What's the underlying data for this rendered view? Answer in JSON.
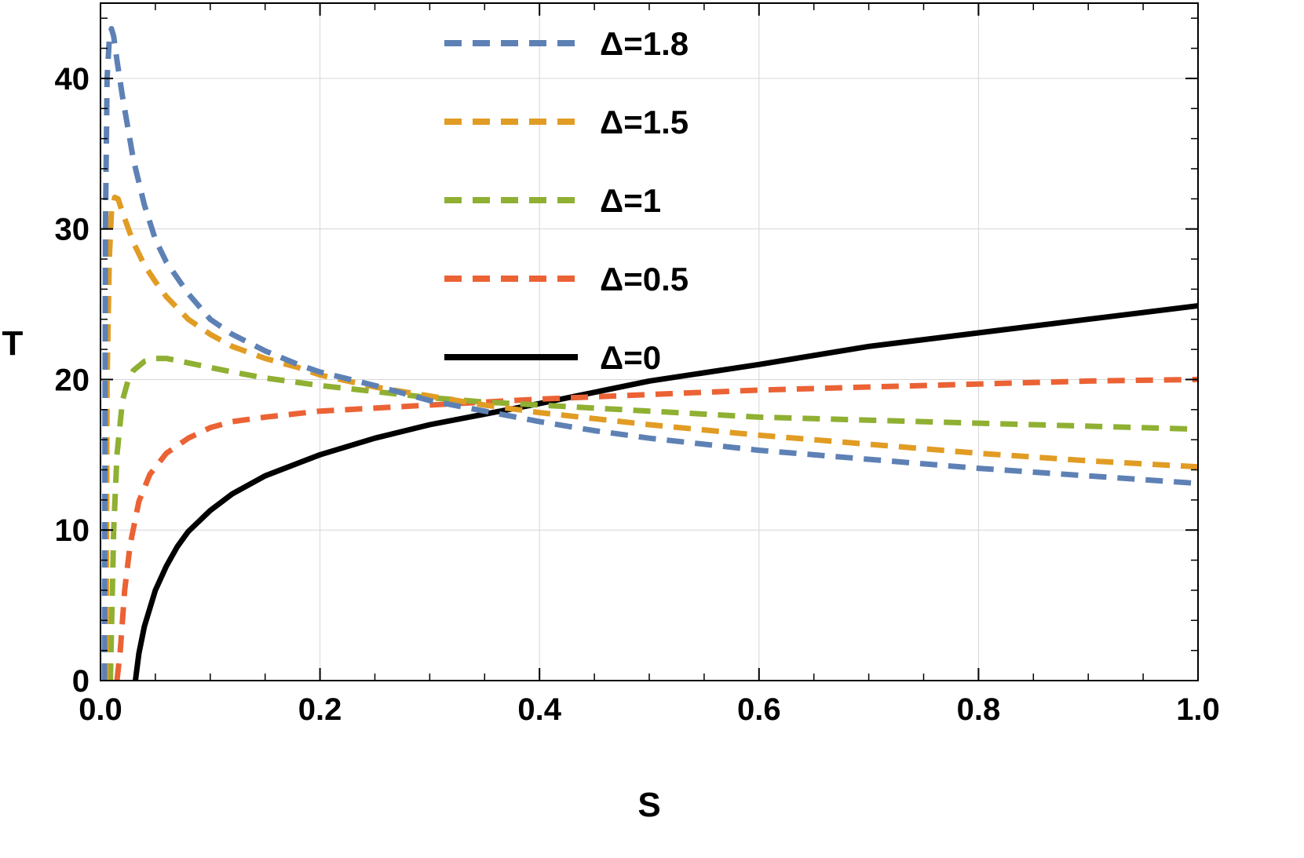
{
  "chart_data": {
    "type": "line",
    "xlabel": "S",
    "ylabel": "T",
    "xlim": [
      0,
      1
    ],
    "ylim": [
      0,
      45
    ],
    "x_ticks": [
      "0.0",
      "0.2",
      "0.4",
      "0.6",
      "0.8",
      "1.0"
    ],
    "y_ticks": [
      "0",
      "10",
      "20",
      "30",
      "40"
    ],
    "grid": true,
    "legend_position": "top-center",
    "series": [
      {
        "name": "Δ=1.8",
        "color": "#5E81B5",
        "style": "dashed",
        "points": [
          [
            0.0035,
            0
          ],
          [
            0.0045,
            30
          ],
          [
            0.006,
            40
          ],
          [
            0.008,
            42.6
          ],
          [
            0.01,
            43.3
          ],
          [
            0.012,
            42.8
          ],
          [
            0.015,
            41.2
          ],
          [
            0.02,
            38.8
          ],
          [
            0.03,
            34.6
          ],
          [
            0.04,
            31.6
          ],
          [
            0.05,
            29.3
          ],
          [
            0.06,
            27.8
          ],
          [
            0.08,
            25.7
          ],
          [
            0.1,
            24.0
          ],
          [
            0.12,
            23.0
          ],
          [
            0.15,
            21.9
          ],
          [
            0.18,
            21.0
          ],
          [
            0.2,
            20.5
          ],
          [
            0.25,
            19.6
          ],
          [
            0.3,
            18.6
          ],
          [
            0.35,
            17.9
          ],
          [
            0.4,
            17.2
          ],
          [
            0.45,
            16.6
          ],
          [
            0.5,
            16.1
          ],
          [
            0.6,
            15.3
          ],
          [
            0.7,
            14.7
          ],
          [
            0.8,
            14.1
          ],
          [
            0.9,
            13.6
          ],
          [
            1.0,
            13.1
          ]
        ]
      },
      {
        "name": "Δ=1.5",
        "color": "#E19C24",
        "style": "dashed",
        "points": [
          [
            0.005,
            0
          ],
          [
            0.006,
            20
          ],
          [
            0.008,
            28
          ],
          [
            0.01,
            31.2
          ],
          [
            0.013,
            32.1
          ],
          [
            0.016,
            32.0
          ],
          [
            0.02,
            31.1
          ],
          [
            0.03,
            29.1
          ],
          [
            0.04,
            27.6
          ],
          [
            0.05,
            26.5
          ],
          [
            0.06,
            25.5
          ],
          [
            0.08,
            24.0
          ],
          [
            0.1,
            23.0
          ],
          [
            0.12,
            22.2
          ],
          [
            0.15,
            21.4
          ],
          [
            0.18,
            20.8
          ],
          [
            0.2,
            20.3
          ],
          [
            0.25,
            19.5
          ],
          [
            0.3,
            18.9
          ],
          [
            0.35,
            18.3
          ],
          [
            0.4,
            17.8
          ],
          [
            0.5,
            17.0
          ],
          [
            0.6,
            16.3
          ],
          [
            0.7,
            15.7
          ],
          [
            0.8,
            15.1
          ],
          [
            0.9,
            14.6
          ],
          [
            1.0,
            14.2
          ]
        ]
      },
      {
        "name": "Δ=1",
        "color": "#8FB032",
        "style": "dashed",
        "points": [
          [
            0.009,
            0
          ],
          [
            0.012,
            10
          ],
          [
            0.015,
            15
          ],
          [
            0.02,
            18.6
          ],
          [
            0.025,
            19.9
          ],
          [
            0.03,
            20.6
          ],
          [
            0.04,
            21.2
          ],
          [
            0.05,
            21.4
          ],
          [
            0.06,
            21.4
          ],
          [
            0.08,
            21.1
          ],
          [
            0.1,
            20.8
          ],
          [
            0.12,
            20.5
          ],
          [
            0.15,
            20.1
          ],
          [
            0.2,
            19.6
          ],
          [
            0.25,
            19.2
          ],
          [
            0.3,
            18.8
          ],
          [
            0.35,
            18.5
          ],
          [
            0.4,
            18.3
          ],
          [
            0.5,
            17.9
          ],
          [
            0.6,
            17.5
          ],
          [
            0.7,
            17.3
          ],
          [
            0.8,
            17.1
          ],
          [
            0.9,
            16.9
          ],
          [
            1.0,
            16.7
          ]
        ]
      },
      {
        "name": "Δ=0.5",
        "color": "#EB6235",
        "style": "dashed",
        "points": [
          [
            0.015,
            0
          ],
          [
            0.018,
            2
          ],
          [
            0.022,
            6
          ],
          [
            0.027,
            9
          ],
          [
            0.035,
            11.9
          ],
          [
            0.045,
            13.7
          ],
          [
            0.06,
            15.1
          ],
          [
            0.08,
            16.1
          ],
          [
            0.1,
            16.8
          ],
          [
            0.12,
            17.2
          ],
          [
            0.15,
            17.5
          ],
          [
            0.2,
            17.9
          ],
          [
            0.25,
            18.1
          ],
          [
            0.3,
            18.3
          ],
          [
            0.35,
            18.5
          ],
          [
            0.4,
            18.7
          ],
          [
            0.5,
            19.0
          ],
          [
            0.6,
            19.3
          ],
          [
            0.7,
            19.5
          ],
          [
            0.8,
            19.7
          ],
          [
            0.9,
            19.9
          ],
          [
            1.0,
            20.0
          ]
        ]
      },
      {
        "name": "Δ=0",
        "color": "#000000",
        "style": "solid",
        "points": [
          [
            0.0318,
            0
          ],
          [
            0.035,
            1.8
          ],
          [
            0.04,
            3.6
          ],
          [
            0.05,
            6.0
          ],
          [
            0.06,
            7.6
          ],
          [
            0.07,
            8.9
          ],
          [
            0.08,
            9.9
          ],
          [
            0.1,
            11.3
          ],
          [
            0.12,
            12.4
          ],
          [
            0.15,
            13.6
          ],
          [
            0.2,
            15.0
          ],
          [
            0.25,
            16.1
          ],
          [
            0.3,
            17.0
          ],
          [
            0.35,
            17.7
          ],
          [
            0.4,
            18.4
          ],
          [
            0.5,
            19.9
          ],
          [
            0.6,
            21.0
          ],
          [
            0.7,
            22.2
          ],
          [
            0.8,
            23.1
          ],
          [
            0.9,
            24.0
          ],
          [
            1.0,
            24.9
          ]
        ]
      }
    ]
  }
}
